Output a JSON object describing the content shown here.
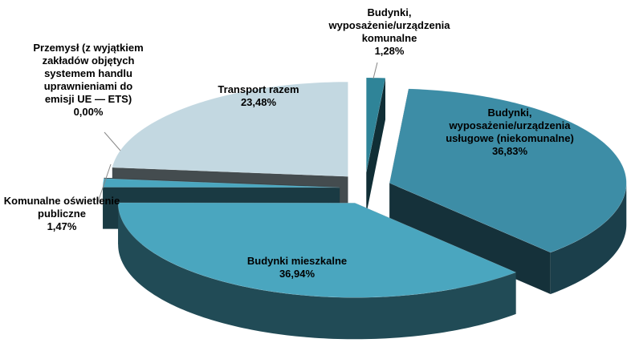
{
  "chart_data": {
    "type": "pie",
    "categories": [
      "Budynki, wyposażenie/urządzenia komunalne",
      "Budynki, wyposażenie/urządzenia usługowe (niekomunalne)",
      "Budynki mieszkalne",
      "Komunalne oświetlenie publiczne",
      "Przemysł (z wyjątkiem zakładów objętych systemem handlu uprawnieniami do emisji UE — ETS)",
      "Transport razem"
    ],
    "values": [
      1.28,
      36.83,
      36.94,
      1.47,
      0.0,
      23.48
    ],
    "value_labels": [
      "1,28%",
      "36,83%",
      "36,94%",
      "1,47%",
      "0,00%",
      "23,48%"
    ],
    "colors": [
      "#2f8498",
      "#3d8da6",
      "#4aa6bf",
      "#4aa6bf",
      "#8fb3c2",
      "#c3d8e1"
    ]
  }
}
